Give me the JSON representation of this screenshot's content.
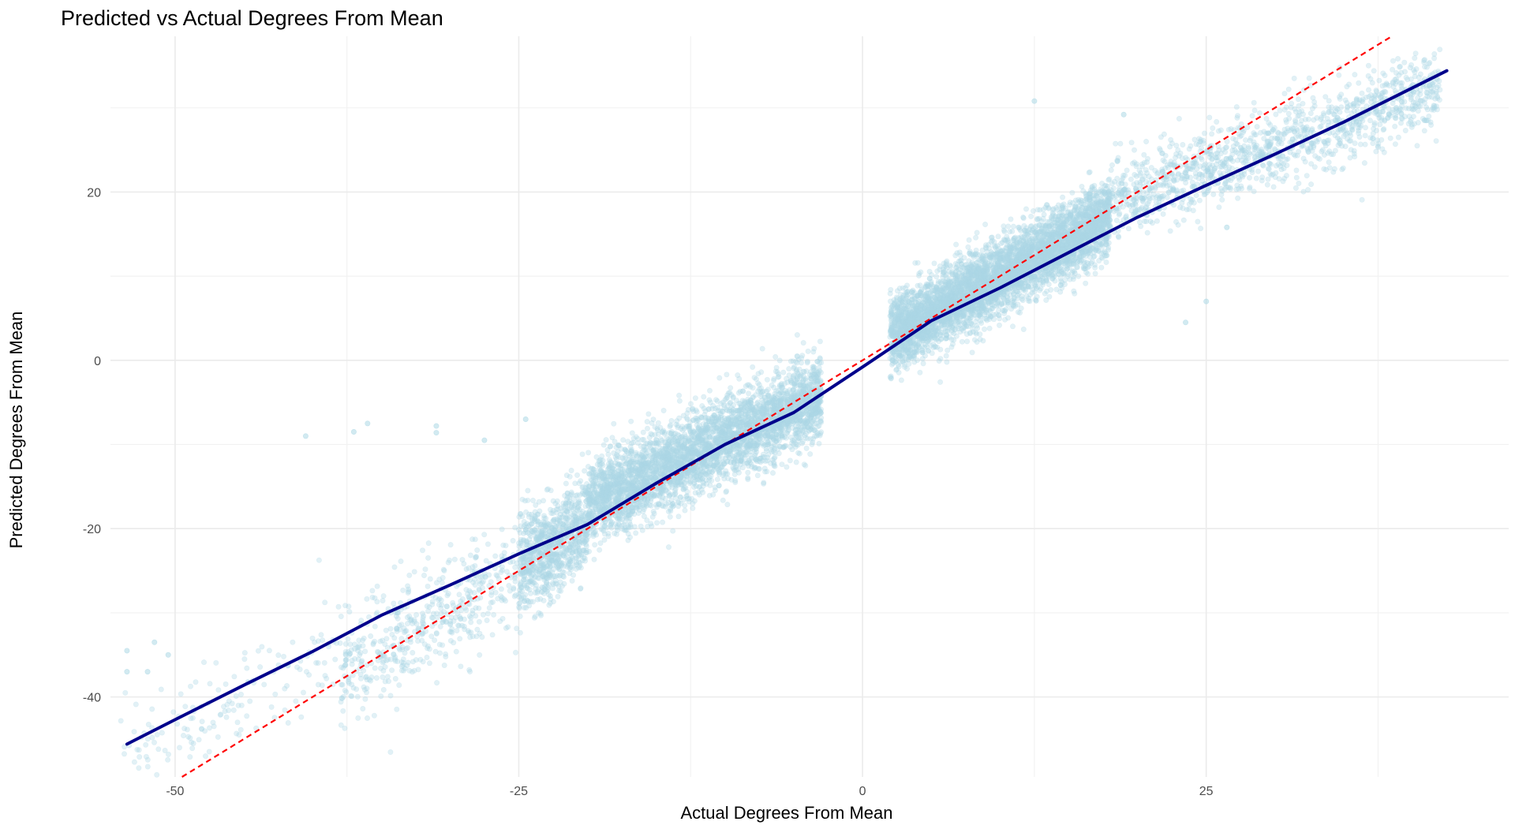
{
  "chart_data": {
    "type": "scatter",
    "title": "Predicted vs Actual Degrees From Mean",
    "xlabel": "Actual Degrees From Mean",
    "ylabel": "Predicted Degrees From Mean",
    "xlim": [
      -54.7,
      47.0
    ],
    "ylim": [
      -49.5,
      38.5
    ],
    "x_ticks": [
      -50,
      -25,
      0,
      25
    ],
    "y_ticks": [
      -40,
      -20,
      0,
      20
    ],
    "x_tick_labels": [
      "-50",
      "-25",
      "0",
      "25"
    ],
    "y_tick_labels": [
      "-40",
      "-20",
      "0",
      "20"
    ],
    "grid": true,
    "legend": "none",
    "colors": {
      "points": "#add8e6",
      "smooth_line": "#00008b",
      "reference_line": "#ff0000",
      "grid_major": "#ebebeb",
      "grid_minor": "#f2f2f2"
    },
    "point_alpha": 0.35,
    "reference_line": {
      "type": "identity",
      "slope": 1,
      "intercept": 0,
      "style": "dashed"
    },
    "smooth_line": {
      "x": [
        -53.5,
        -50,
        -45,
        -40,
        -35,
        -30,
        -25,
        -20,
        -15,
        -10,
        -5,
        0,
        5,
        10,
        15,
        20,
        25,
        30,
        35,
        42.5
      ],
      "y": [
        -45.6,
        -42.7,
        -38.6,
        -34.6,
        -30.3,
        -26.7,
        -23.0,
        -19.5,
        -14.6,
        -10.0,
        -6.2,
        -0.8,
        4.7,
        8.6,
        12.8,
        17.0,
        20.8,
        24.5,
        28.3,
        34.4
      ]
    },
    "clusters": [
      {
        "x_range": [
          -54,
          -38
        ],
        "spread": 3.2,
        "slope": 0.85,
        "offset": -1.5,
        "count": 160
      },
      {
        "x_range": [
          -38,
          -25
        ],
        "spread": 3.3,
        "slope": 0.95,
        "offset": -1.0,
        "count": 520
      },
      {
        "x_range": [
          -25,
          -20
        ],
        "spread": 3.0,
        "slope": 1.0,
        "offset": 0.5,
        "count": 900
      },
      {
        "x_range": [
          -20,
          -3
        ],
        "spread": 2.5,
        "slope": 0.75,
        "offset": -2.0,
        "count": 3800
      },
      {
        "x_range": [
          2,
          18
        ],
        "spread": 2.2,
        "slope": 0.9,
        "offset": 1.0,
        "count": 4800
      },
      {
        "x_range": [
          18,
          42
        ],
        "spread": 2.4,
        "slope": 0.55,
        "offset": 9.0,
        "count": 1300
      }
    ],
    "outliers": [
      {
        "x": -40.5,
        "y": -9.0
      },
      {
        "x": -37.0,
        "y": -8.5
      },
      {
        "x": -36.0,
        "y": -7.5
      },
      {
        "x": -31.0,
        "y": -7.8
      },
      {
        "x": -31.0,
        "y": -8.6
      },
      {
        "x": -27.5,
        "y": -9.5
      },
      {
        "x": -24.5,
        "y": -7.0
      },
      {
        "x": 12.5,
        "y": 30.8
      },
      {
        "x": 19.0,
        "y": 29.2
      },
      {
        "x": 25.0,
        "y": 7.0
      },
      {
        "x": 23.5,
        "y": 4.5
      },
      {
        "x": 26.5,
        "y": 15.8
      },
      {
        "x": -53.5,
        "y": -37.0
      },
      {
        "x": -52.0,
        "y": -37.0
      },
      {
        "x": -50.5,
        "y": -35.0
      },
      {
        "x": -53.5,
        "y": -34.5
      },
      {
        "x": -51.5,
        "y": -33.5
      },
      {
        "x": 41.0,
        "y": 28.5
      }
    ]
  }
}
